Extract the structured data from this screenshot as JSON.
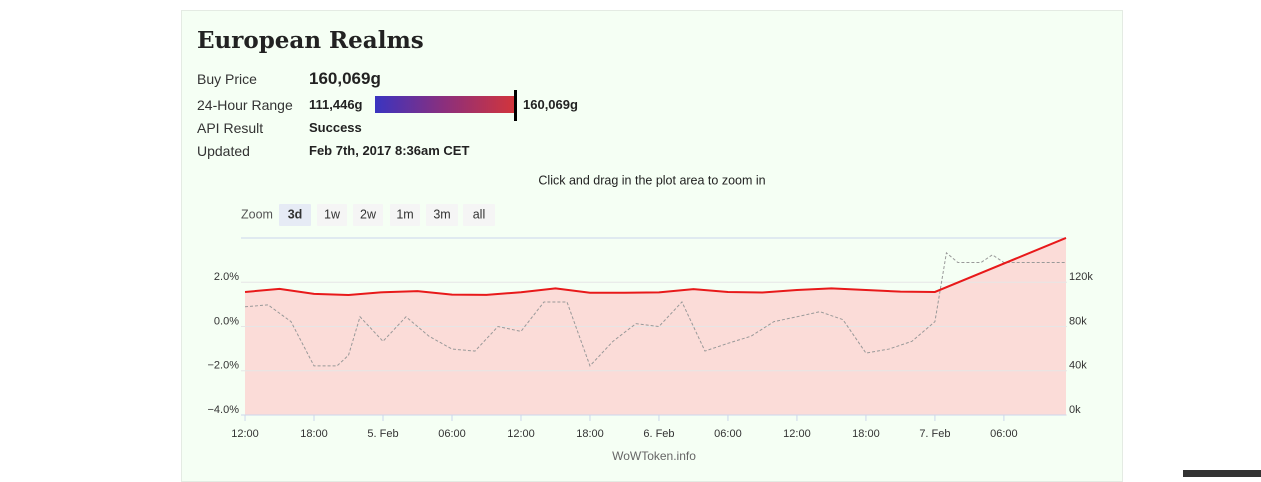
{
  "header": {
    "title": "European Realms"
  },
  "info": {
    "buy_price": {
      "label": "Buy Price",
      "value": "160,069g"
    },
    "range": {
      "label": "24-Hour Range",
      "min": "111,446g",
      "max": "160,069g"
    },
    "api_result": {
      "label": "API Result",
      "value": "Success"
    },
    "updated": {
      "label": "Updated",
      "value": "Feb 7th, 2017 8:36am CET"
    }
  },
  "zoom": {
    "label": "Zoom",
    "buttons": [
      "3d",
      "1w",
      "2w",
      "1m",
      "3m",
      "all"
    ],
    "selected": "3d"
  },
  "chart_data": {
    "type": "line",
    "subtitle": "Click and drag in the plot area to zoom in",
    "credit": "WoWToken.info",
    "xlim": [
      -0.35,
      71.4
    ],
    "xticks": [
      {
        "value": 0,
        "label": "12:00"
      },
      {
        "value": 6,
        "label": "18:00"
      },
      {
        "value": 12,
        "label": "5. Feb"
      },
      {
        "value": 18,
        "label": "06:00"
      },
      {
        "value": 24,
        "label": "12:00"
      },
      {
        "value": 30,
        "label": "18:00"
      },
      {
        "value": 36,
        "label": "6. Feb"
      },
      {
        "value": 42,
        "label": "06:00"
      },
      {
        "value": 48,
        "label": "12:00"
      },
      {
        "value": 54,
        "label": "18:00"
      },
      {
        "value": 60,
        "label": "7. Feb"
      },
      {
        "value": 66,
        "label": "06:00"
      }
    ],
    "ylim": [
      -4,
      4
    ],
    "yticks": [
      {
        "value": -4,
        "label": "−4.0%"
      },
      {
        "value": -2,
        "label": "−2.0%"
      },
      {
        "value": 0,
        "label": "0.0%"
      },
      {
        "value": 2,
        "label": "2.0%"
      }
    ],
    "y2lim": [
      0,
      160000
    ],
    "y2ticks": [
      {
        "value": 0,
        "label": "0k"
      },
      {
        "value": 40000,
        "label": "40k"
      },
      {
        "value": 80000,
        "label": "80k"
      },
      {
        "value": 120000,
        "label": "120k"
      }
    ],
    "grid": true,
    "series": [
      {
        "axis": "y2",
        "color": "#e8191a",
        "area_color": "#fbdcd8",
        "x": [
          0,
          3,
          6,
          9,
          12,
          15,
          18,
          21,
          24,
          27,
          30,
          33,
          36,
          39,
          42,
          45,
          48,
          51,
          54,
          57,
          60,
          71.4
        ],
        "values": [
          111200,
          114000,
          109500,
          108500,
          111000,
          112000,
          108800,
          108600,
          111000,
          114500,
          110500,
          110500,
          110800,
          113800,
          111200,
          110700,
          113000,
          114500,
          113000,
          111500,
          111200,
          160069
        ]
      },
      {
        "color": "#999999",
        "dashed": true,
        "x": [
          0,
          2,
          4,
          6,
          8,
          9,
          10,
          12,
          14,
          16,
          18,
          20,
          22,
          24,
          26,
          28,
          30,
          32,
          34,
          36,
          38,
          40,
          42,
          44,
          46,
          48,
          50,
          52,
          54,
          56,
          58,
          60,
          61,
          62,
          64,
          65,
          66,
          68,
          71.4
        ],
        "values": [
          0.89,
          0.98,
          0.22,
          -1.78,
          -1.78,
          -1.3,
          0.44,
          -0.67,
          0.44,
          -0.44,
          -1.02,
          -1.11,
          0,
          -0.22,
          1.11,
          1.11,
          -1.78,
          -0.67,
          0.13,
          0,
          1.11,
          -1.11,
          -0.76,
          -0.44,
          0.22,
          0.44,
          0.67,
          0.31,
          -1.2,
          -1.02,
          -0.67,
          0.22,
          3.33,
          2.89,
          2.89,
          3.24,
          2.89,
          2.89,
          2.89
        ]
      }
    ]
  }
}
